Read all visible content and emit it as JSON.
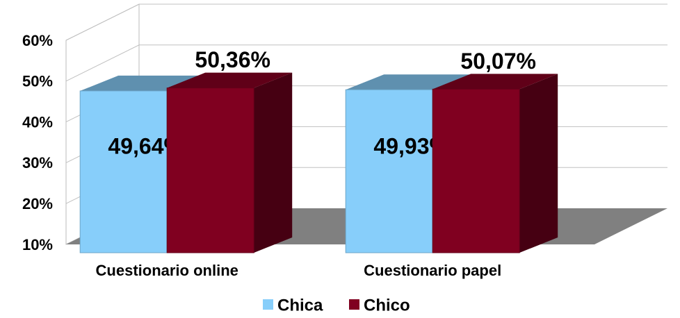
{
  "chart_data": {
    "type": "bar3d",
    "categories": [
      "Cuestionario online",
      "Cuestionario papel"
    ],
    "series": [
      {
        "name": "Chica",
        "color": "#87cefa",
        "values": [
          49.64,
          49.93
        ],
        "value_labels": [
          "49,64%",
          "49,93%"
        ]
      },
      {
        "name": "Chico",
        "color": "#800020",
        "values": [
          50.36,
          50.07
        ],
        "value_labels": [
          "50,36%",
          "50,07%"
        ]
      }
    ],
    "ylim": [
      10,
      60
    ],
    "yticks": [
      {
        "value": 10,
        "label": "10%"
      },
      {
        "value": 20,
        "label": "20%"
      },
      {
        "value": 30,
        "label": "30%"
      },
      {
        "value": 40,
        "label": "40%"
      },
      {
        "value": 50,
        "label": "50%"
      },
      {
        "value": 60,
        "label": "60%"
      }
    ],
    "grid": true,
    "legend": "bottom"
  }
}
